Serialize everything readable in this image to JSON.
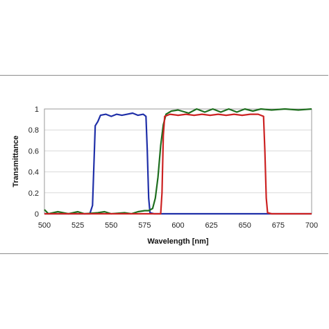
{
  "chart_data": {
    "type": "line",
    "title": "",
    "xlabel": "Wavelength [nm]",
    "ylabel": "Transmittance",
    "xlim": [
      500,
      700
    ],
    "ylim": [
      0,
      1
    ],
    "x_ticks": [
      "500",
      "525",
      "550",
      "575",
      "600",
      "625",
      "650",
      "675",
      "700"
    ],
    "y_ticks": [
      "0",
      "0.2",
      "0.4",
      "0.6",
      "0.8",
      "1"
    ],
    "grid": "horizontal",
    "legend": "none",
    "series": [
      {
        "color": "#1f2fa8",
        "points": [
          [
            500,
            0
          ],
          [
            534,
            0
          ],
          [
            536,
            0.08
          ],
          [
            537,
            0.45
          ],
          [
            538,
            0.84
          ],
          [
            540,
            0.88
          ],
          [
            542,
            0.94
          ],
          [
            546,
            0.95
          ],
          [
            550,
            0.93
          ],
          [
            554,
            0.95
          ],
          [
            558,
            0.94
          ],
          [
            562,
            0.95
          ],
          [
            566,
            0.96
          ],
          [
            570,
            0.94
          ],
          [
            574,
            0.95
          ],
          [
            576,
            0.93
          ],
          [
            577,
            0.6
          ],
          [
            578,
            0.15
          ],
          [
            579,
            0.01
          ],
          [
            582,
            0
          ],
          [
            700,
            0
          ]
        ]
      },
      {
        "color": "#1e6e1e",
        "points": [
          [
            500,
            0.04
          ],
          [
            503,
            0.0
          ],
          [
            510,
            0.02
          ],
          [
            518,
            0.0
          ],
          [
            525,
            0.02
          ],
          [
            530,
            0.0
          ],
          [
            540,
            0.01
          ],
          [
            545,
            0.02
          ],
          [
            550,
            0.0
          ],
          [
            560,
            0.01
          ],
          [
            565,
            0.0
          ],
          [
            570,
            0.02
          ],
          [
            575,
            0.03
          ],
          [
            578,
            0.03
          ],
          [
            581,
            0.05
          ],
          [
            583,
            0.15
          ],
          [
            585,
            0.35
          ],
          [
            587,
            0.65
          ],
          [
            589,
            0.85
          ],
          [
            591,
            0.95
          ],
          [
            595,
            0.98
          ],
          [
            600,
            0.99
          ],
          [
            608,
            0.96
          ],
          [
            614,
            1.0
          ],
          [
            620,
            0.97
          ],
          [
            626,
            1.0
          ],
          [
            632,
            0.97
          ],
          [
            638,
            1.0
          ],
          [
            644,
            0.97
          ],
          [
            650,
            1.0
          ],
          [
            656,
            0.98
          ],
          [
            662,
            1.0
          ],
          [
            670,
            0.99
          ],
          [
            680,
            1.0
          ],
          [
            690,
            0.99
          ],
          [
            700,
            1.0
          ]
        ]
      },
      {
        "color": "#cc2222",
        "points": [
          [
            500,
            0.0
          ],
          [
            575,
            0.0
          ],
          [
            580,
            0.0
          ],
          [
            587,
            0.0
          ],
          [
            588,
            0.2
          ],
          [
            589,
            0.75
          ],
          [
            590,
            0.93
          ],
          [
            594,
            0.95
          ],
          [
            600,
            0.94
          ],
          [
            606,
            0.95
          ],
          [
            612,
            0.94
          ],
          [
            618,
            0.95
          ],
          [
            624,
            0.94
          ],
          [
            630,
            0.95
          ],
          [
            636,
            0.94
          ],
          [
            642,
            0.95
          ],
          [
            648,
            0.94
          ],
          [
            654,
            0.95
          ],
          [
            660,
            0.95
          ],
          [
            664,
            0.93
          ],
          [
            665,
            0.6
          ],
          [
            666,
            0.15
          ],
          [
            667,
            0.01
          ],
          [
            670,
            0.0
          ],
          [
            700,
            0.0
          ]
        ]
      }
    ]
  }
}
